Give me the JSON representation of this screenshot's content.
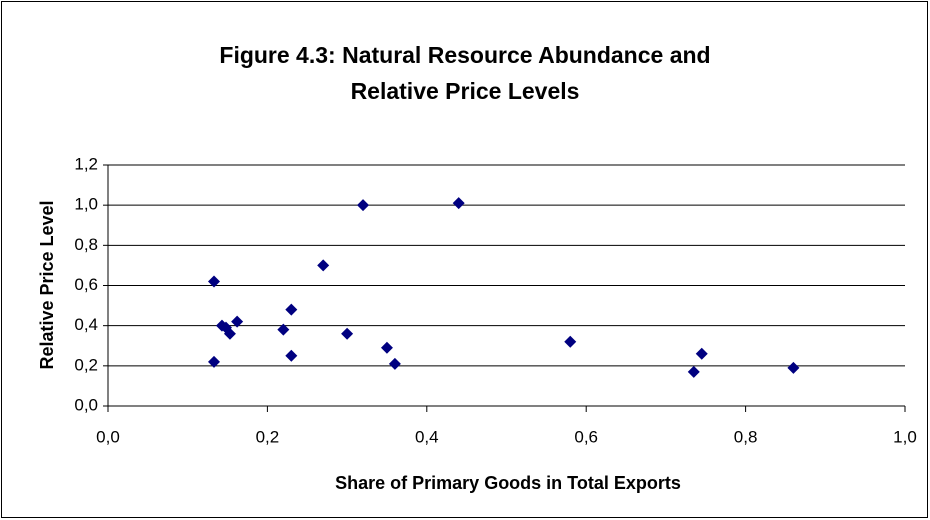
{
  "chart_data": {
    "type": "scatter",
    "title": [
      "Figure 4.3: Natural Resource Abundance and",
      "Relative Price Levels"
    ],
    "x_label": "Share of Primary Goods in Total Exports",
    "y_label": "Relative Price Level",
    "color": "#000080",
    "grid": true,
    "series": [
      {
        "name": null,
        "color": "#000080",
        "x": [
          0.133,
          0.133,
          0.143,
          0.148,
          0.153,
          0.162,
          0.22,
          0.23,
          0.23,
          0.27,
          0.3,
          0.32,
          0.35,
          0.36,
          0.44,
          0.58,
          0.735,
          0.745,
          0.86
        ],
        "values": [
          0.62,
          0.22,
          0.4,
          0.39,
          0.36,
          0.42,
          0.38,
          0.48,
          0.25,
          0.7,
          0.36,
          1.0,
          0.29,
          0.21,
          1.01,
          0.32,
          0.17,
          0.26,
          0.19
        ]
      }
    ],
    "xlim": [
      0,
      1
    ],
    "xticks": [
      {
        "value": 0,
        "label": "0,0"
      },
      {
        "value": 0.2,
        "label": "0,2"
      },
      {
        "value": 0.4,
        "label": "0,4"
      },
      {
        "value": 0.6,
        "label": "0,6"
      },
      {
        "value": 0.8,
        "label": "0,8"
      },
      {
        "value": 1,
        "label": "1,0"
      }
    ],
    "ylim": [
      0,
      1.2
    ],
    "yticks": [
      {
        "value": 0,
        "label": "0,0"
      },
      {
        "value": 0.2,
        "label": "0,2"
      },
      {
        "value": 0.4,
        "label": "0,4"
      },
      {
        "value": 0.6,
        "label": "0,6"
      },
      {
        "value": 0.8,
        "label": "0,8"
      },
      {
        "value": 1,
        "label": "1,0"
      },
      {
        "value": 1.2,
        "label": "1,2"
      }
    ]
  }
}
